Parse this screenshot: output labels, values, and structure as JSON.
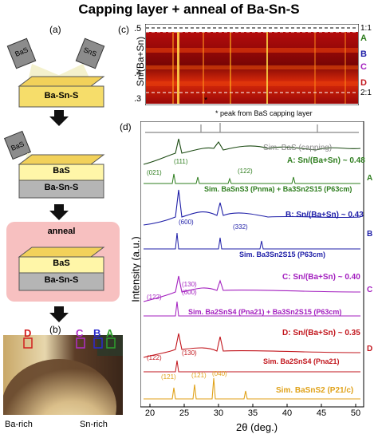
{
  "title": "Capping layer + anneal of Ba-Sn-S",
  "panel_a": {
    "label": "(a)",
    "target_left": "BaS",
    "target_right": "SnS",
    "film": "Ba-Sn-S",
    "step2_target": "BaS",
    "step2_cap": "BaS",
    "step2_film": "Ba-Sn-S",
    "anneal_label": "anneal",
    "step3_cap": "BaS",
    "step3_film": "Ba-Sn-S"
  },
  "panel_b": {
    "label": "(b)",
    "marker_D": "D",
    "marker_C": "C",
    "marker_B": "B",
    "marker_A": "A",
    "left_label": "Ba-rich",
    "right_label": "Sn-rich"
  },
  "panel_c": {
    "label": "(c)",
    "ylabel": "Sn/(Ba+Sn)",
    "yticks": [
      ".5",
      ".4",
      ".3"
    ],
    "ratio_11": "1:1",
    "ratio_21": "2:1",
    "markers": [
      "A",
      "B",
      "C",
      "D"
    ],
    "star": "*"
  },
  "panel_d": {
    "label": "(d)",
    "star_note": "* peak from BaS capping layer",
    "ylabel": "Intensity (a.u.)",
    "xlabel": "2θ (deg.)",
    "xticks": [
      "20",
      "25",
      "30",
      "35",
      "40",
      "45",
      "50"
    ],
    "sim_bas": "Sim. BaS (capping)",
    "A_label": "A: Sn/(Ba+Sn) ~ 0.48",
    "A_sim": "Sim. BaSnS3 (Pnma) + Ba3Sn2S15 (P63cm)",
    "A_hkl": [
      "(021)",
      "(111)",
      "(122)"
    ],
    "B_label": "B: Sn/(Ba+Sn) ~ 0.43",
    "B_sim": "Sim. Ba3Sn2S15 (P63cm)",
    "B_hkl": [
      "(600)",
      "(332)"
    ],
    "C_label": "C: Sn/(Ba+Sn) ~ 0.40",
    "C_sim": "Sim. Ba2SnS4 (Pna21) + Ba3Sn2S15 (P63cm)",
    "C_hkl": [
      "(130)",
      "(600)",
      "(122)"
    ],
    "D_label": "D: Sn/(Ba+Sn) ~ 0.35",
    "D_sim": "Sim. Ba2SnS4 (Pna21)",
    "D_hkl": [
      "(122)",
      "(130)"
    ],
    "E_sim": "Sim. BaSnS2 (P21/c)",
    "E_hkl": [
      "(121)",
      "(121)",
      "(040)"
    ],
    "side_letters": [
      "A",
      "B",
      "C",
      "D"
    ],
    "colors": {
      "A": "#2e7d1e",
      "B": "#1f1fa8",
      "C": "#a31fbf",
      "D": "#c2161d",
      "E": "#e0a21a",
      "BaS": "#888888"
    }
  }
}
